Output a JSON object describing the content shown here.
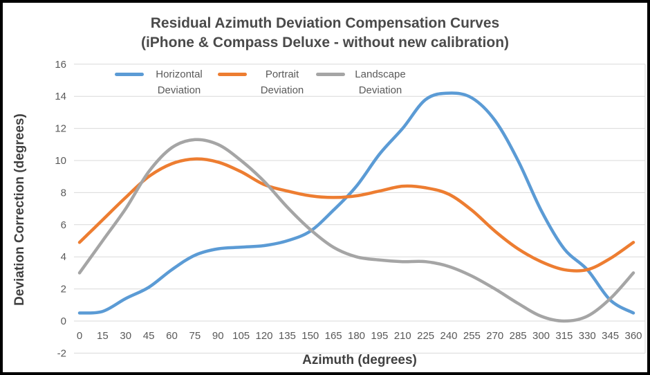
{
  "chart_data": {
    "type": "line",
    "title": "Residual Azimuth Deviation Compensation Curves",
    "subtitle": "(iPhone & Compass Deluxe - without new calibration)",
    "xlabel": "Azimuth (degrees)",
    "ylabel": "Deviation Correction (degrees)",
    "categories": [
      0,
      15,
      30,
      45,
      60,
      75,
      90,
      105,
      120,
      135,
      150,
      165,
      180,
      195,
      210,
      225,
      240,
      255,
      270,
      285,
      300,
      315,
      330,
      345,
      360
    ],
    "y_ticks": [
      16,
      14,
      12,
      10,
      8,
      6,
      4,
      2,
      0,
      -2
    ],
    "ylim": [
      -2,
      16
    ],
    "grid": "horizontal-only",
    "legend_position": "top-inside",
    "smooth_lines": true,
    "series": [
      {
        "name": "Horizontal Deviation",
        "color": "#5B9BD5",
        "values": [
          0.5,
          0.6,
          1.4,
          2.1,
          3.2,
          4.1,
          4.5,
          4.6,
          4.7,
          5.0,
          5.6,
          6.9,
          8.4,
          10.4,
          12.0,
          13.8,
          14.2,
          13.9,
          12.5,
          10.0,
          6.9,
          4.5,
          3.2,
          1.3,
          0.5
        ]
      },
      {
        "name": "Portrait Deviation",
        "color": "#ED7D31",
        "values": [
          4.9,
          6.3,
          7.7,
          9.0,
          9.8,
          10.1,
          9.9,
          9.3,
          8.5,
          8.1,
          7.8,
          7.7,
          7.8,
          8.1,
          8.4,
          8.3,
          7.9,
          6.9,
          5.6,
          4.5,
          3.7,
          3.2,
          3.2,
          3.9,
          4.9
        ]
      },
      {
        "name": "Landscape Deviation",
        "color": "#A5A5A5",
        "values": [
          3.0,
          5.0,
          7.0,
          9.3,
          10.8,
          11.3,
          11.0,
          10.0,
          8.7,
          7.1,
          5.7,
          4.6,
          4.0,
          3.8,
          3.7,
          3.7,
          3.4,
          2.8,
          2.0,
          1.1,
          0.3,
          0.0,
          0.3,
          1.4,
          3.0
        ]
      }
    ],
    "colors": {
      "background": "#FFFFFF",
      "frame_border": "#000000",
      "gridline": "#D9D9D9",
      "tick_text": "#595959",
      "title_text": "#4A4A4A",
      "axis_title_text": "#404040"
    }
  }
}
